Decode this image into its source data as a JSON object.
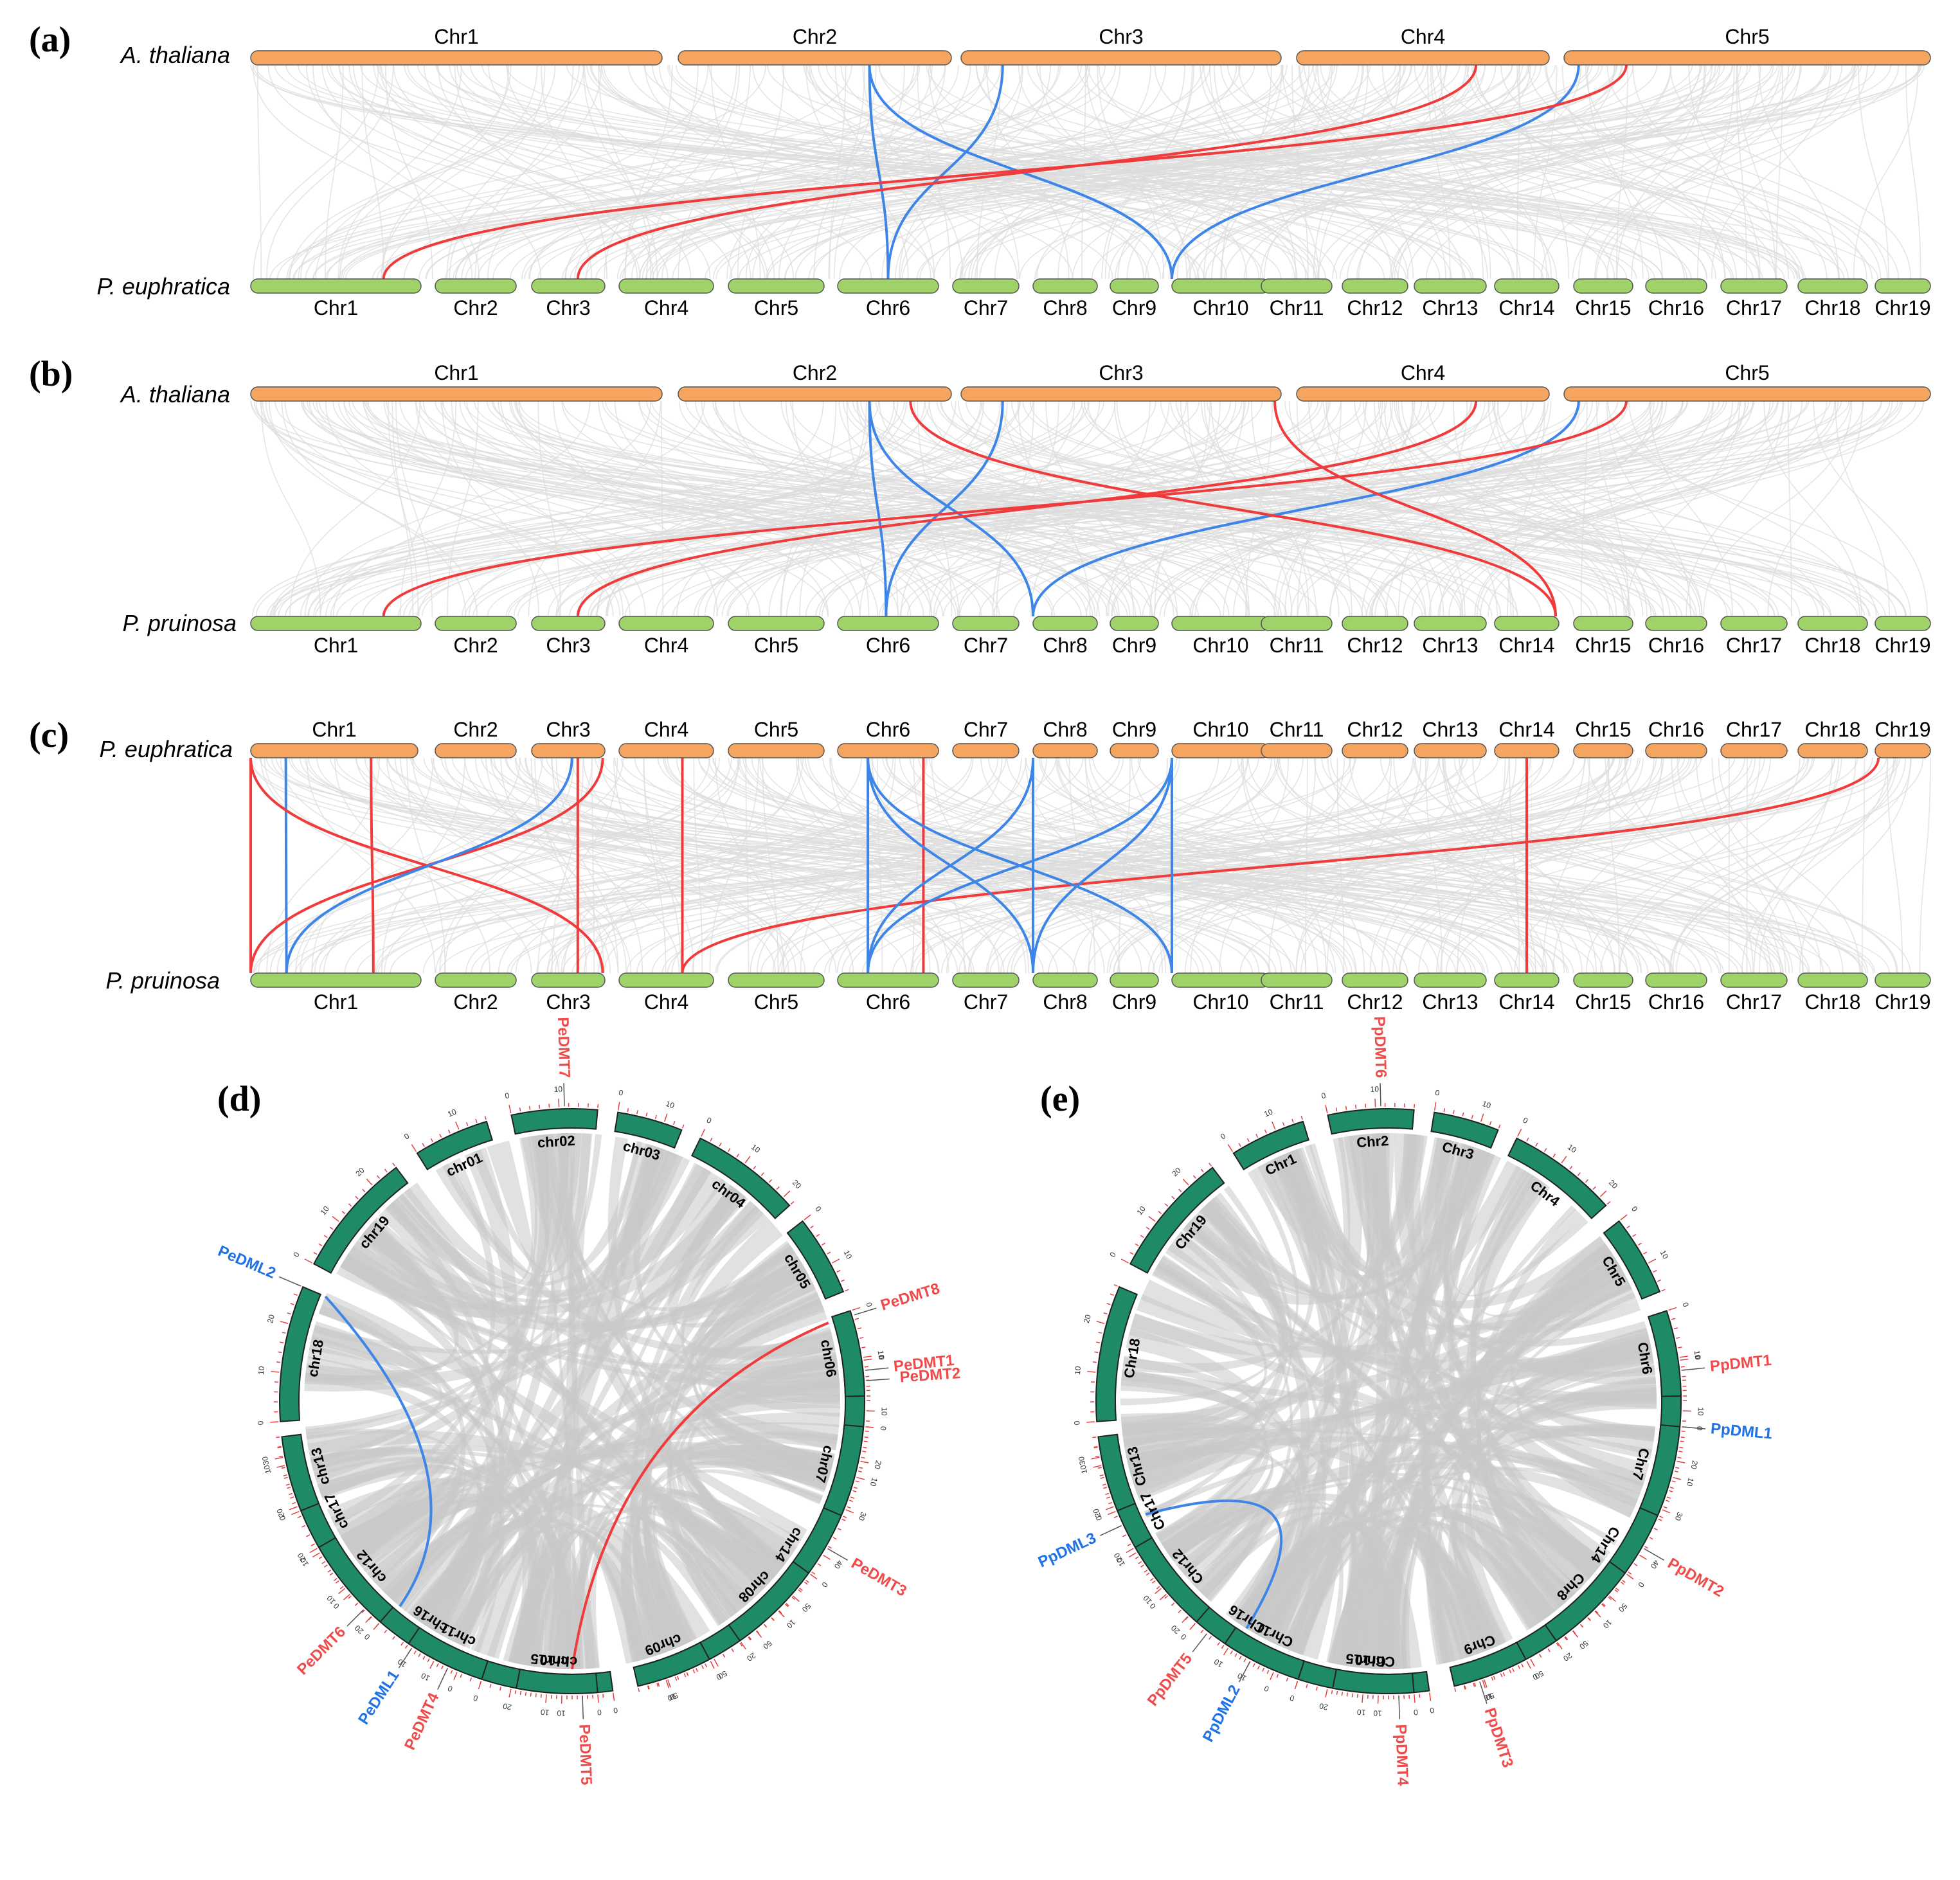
{
  "colors": {
    "top_bar": "#f6a561",
    "bottom_bar": "#9fd36a",
    "bar_stroke": "#555555",
    "red_link": "#ef3b3b",
    "blue_link": "#3d86e8",
    "gray_link": "#dcdcdc",
    "circos_chr": "#1e8a66",
    "tick_red": "#e24040"
  },
  "panels": {
    "a": {
      "label": "(a)",
      "top_species": "A. thaliana",
      "bottom_species": "P. euphratica",
      "top_chromosomes": [
        "Chr1",
        "Chr2",
        "Chr3",
        "Chr4",
        "Chr5"
      ],
      "bottom_chromosomes": [
        "Chr1",
        "Chr2",
        "Chr3",
        "Chr4",
        "Chr5",
        "Chr6",
        "Chr7",
        "Chr8",
        "Chr9",
        "Chr10",
        "Chr11",
        "Chr12",
        "Chr13",
        "Chr14",
        "Chr15",
        "Chr16",
        "Chr17",
        "Chr18",
        "Chr19"
      ],
      "links": [
        {
          "top_chr": "Chr2",
          "top_frac": 0.7,
          "bottom_chr": "Chr6",
          "bottom_frac": 0.5,
          "color": "blue"
        },
        {
          "top_chr": "Chr2",
          "top_frac": 0.7,
          "bottom_chr": "Chr10",
          "bottom_frac": 0.0,
          "color": "blue"
        },
        {
          "top_chr": "Chr3",
          "top_frac": 0.13,
          "bottom_chr": "Chr6",
          "bottom_frac": 0.5,
          "color": "blue"
        },
        {
          "top_chr": "Chr5",
          "top_frac": 0.04,
          "bottom_chr": "Chr10",
          "bottom_frac": 0.0,
          "color": "blue"
        },
        {
          "top_chr": "Chr4",
          "top_frac": 0.71,
          "bottom_chr": "Chr3",
          "bottom_frac": 0.63,
          "color": "red"
        },
        {
          "top_chr": "Chr5",
          "top_frac": 0.17,
          "bottom_chr": "Chr1",
          "bottom_frac": 0.78,
          "color": "red"
        }
      ]
    },
    "b": {
      "label": "(b)",
      "top_species": "A. thaliana",
      "bottom_species": "P.  pruinosa",
      "top_chromosomes": [
        "Chr1",
        "Chr2",
        "Chr3",
        "Chr4",
        "Chr5"
      ],
      "bottom_chromosomes": [
        "Chr1",
        "Chr2",
        "Chr3",
        "Chr4",
        "Chr5",
        "Chr6",
        "Chr7",
        "Chr8",
        "Chr9",
        "Chr10",
        "Chr11",
        "Chr12",
        "Chr13",
        "Chr14",
        "Chr15",
        "Chr16",
        "Chr17",
        "Chr18",
        "Chr19"
      ],
      "links": [
        {
          "top_chr": "Chr2",
          "top_frac": 0.7,
          "bottom_chr": "Chr6",
          "bottom_frac": 0.48,
          "color": "blue"
        },
        {
          "top_chr": "Chr2",
          "top_frac": 0.7,
          "bottom_chr": "Chr8",
          "bottom_frac": 0.0,
          "color": "blue"
        },
        {
          "top_chr": "Chr3",
          "top_frac": 0.13,
          "bottom_chr": "Chr6",
          "bottom_frac": 0.48,
          "color": "blue"
        },
        {
          "top_chr": "Chr5",
          "top_frac": 0.04,
          "bottom_chr": "Chr8",
          "bottom_frac": 0.0,
          "color": "blue"
        },
        {
          "top_chr": "Chr2",
          "top_frac": 0.85,
          "bottom_chr": "Chr14",
          "bottom_frac": 0.95,
          "color": "red"
        },
        {
          "top_chr": "Chr3",
          "top_frac": 0.98,
          "bottom_chr": "Chr14",
          "bottom_frac": 0.95,
          "color": "red"
        },
        {
          "top_chr": "Chr4",
          "top_frac": 0.71,
          "bottom_chr": "Chr3",
          "bottom_frac": 0.63,
          "color": "red"
        },
        {
          "top_chr": "Chr5",
          "top_frac": 0.17,
          "bottom_chr": "Chr1",
          "bottom_frac": 0.78,
          "color": "red"
        }
      ]
    },
    "c": {
      "label": "(c)",
      "top_species": "P. euphratica",
      "bottom_species": "P.  pruinosa",
      "top_chromosomes": [
        "Chr1",
        "Chr2",
        "Chr3",
        "Chr4",
        "Chr5",
        "Chr6",
        "Chr7",
        "Chr8",
        "Chr9",
        "Chr10",
        "Chr11",
        "Chr12",
        "Chr13",
        "Chr14",
        "Chr15",
        "Chr16",
        "Chr17",
        "Chr18",
        "Chr19"
      ],
      "bottom_chromosomes": [
        "Chr1",
        "Chr2",
        "Chr3",
        "Chr4",
        "Chr5",
        "Chr6",
        "Chr7",
        "Chr8",
        "Chr9",
        "Chr10",
        "Chr11",
        "Chr12",
        "Chr13",
        "Chr14",
        "Chr15",
        "Chr16",
        "Chr17",
        "Chr18",
        "Chr19"
      ],
      "links": [
        {
          "top_chr": "Chr1",
          "top_frac": 0.0,
          "bottom_chr": "Chr1",
          "bottom_frac": 0.0,
          "color": "red"
        },
        {
          "top_chr": "Chr1",
          "top_frac": 0.21,
          "bottom_chr": "Chr1",
          "bottom_frac": 0.21,
          "color": "blue"
        },
        {
          "top_chr": "Chr1",
          "top_frac": 0.72,
          "bottom_chr": "Chr1",
          "bottom_frac": 0.72,
          "color": "red"
        },
        {
          "top_chr": "Chr1",
          "top_frac": 0.0,
          "bottom_chr": "Chr3",
          "bottom_frac": 0.97,
          "color": "red"
        },
        {
          "top_chr": "Chr3",
          "top_frac": 0.97,
          "bottom_chr": "Chr1",
          "bottom_frac": 0.0,
          "color": "red"
        },
        {
          "top_chr": "Chr3",
          "top_frac": 0.55,
          "bottom_chr": "Chr1",
          "bottom_frac": 0.21,
          "color": "blue"
        },
        {
          "top_chr": "Chr3",
          "top_frac": 0.63,
          "bottom_chr": "Chr3",
          "bottom_frac": 0.63,
          "color": "red"
        },
        {
          "top_chr": "Chr4",
          "top_frac": 0.67,
          "bottom_chr": "Chr4",
          "bottom_frac": 0.67,
          "color": "red"
        },
        {
          "top_chr": "Chr6",
          "top_frac": 0.85,
          "bottom_chr": "Chr6",
          "bottom_frac": 0.85,
          "color": "red"
        },
        {
          "top_chr": "Chr19",
          "top_frac": 0.06,
          "bottom_chr": "Chr4",
          "bottom_frac": 0.67,
          "color": "red"
        },
        {
          "top_chr": "Chr14",
          "top_frac": 0.5,
          "bottom_chr": "Chr14",
          "bottom_frac": 0.5,
          "color": "red"
        },
        {
          "top_chr": "Chr6",
          "top_frac": 0.3,
          "bottom_chr": "Chr6",
          "bottom_frac": 0.3,
          "color": "blue"
        },
        {
          "top_chr": "Chr6",
          "top_frac": 0.3,
          "bottom_chr": "Chr8",
          "bottom_frac": 0.0,
          "color": "blue"
        },
        {
          "top_chr": "Chr6",
          "top_frac": 0.3,
          "bottom_chr": "Chr10",
          "bottom_frac": 0.0,
          "color": "blue"
        },
        {
          "top_chr": "Chr8",
          "top_frac": 0.0,
          "bottom_chr": "Chr8",
          "bottom_frac": 0.0,
          "color": "blue"
        },
        {
          "top_chr": "Chr8",
          "top_frac": 0.0,
          "bottom_chr": "Chr6",
          "bottom_frac": 0.3,
          "color": "blue"
        },
        {
          "top_chr": "Chr10",
          "top_frac": 0.0,
          "bottom_chr": "Chr6",
          "bottom_frac": 0.3,
          "color": "blue"
        },
        {
          "top_chr": "Chr10",
          "top_frac": 0.0,
          "bottom_chr": "Chr8",
          "bottom_frac": 0.0,
          "color": "blue"
        },
        {
          "top_chr": "Chr10",
          "top_frac": 0.0,
          "bottom_chr": "Chr10",
          "bottom_frac": 0.0,
          "color": "blue"
        }
      ]
    },
    "d": {
      "label": "(d)",
      "chromosomes": [
        "chr01",
        "chr02",
        "chr03",
        "chr04",
        "chr05",
        "chr06",
        "chr07",
        "chr08",
        "chr09",
        "chr10",
        "chr11",
        "chr12",
        "chr13",
        "chr14",
        "chr15",
        "chr16",
        "chr17",
        "chr18",
        "chr19"
      ],
      "tick_labels": [
        "0",
        "10",
        "20",
        "30",
        "40",
        "50"
      ],
      "genes": [
        {
          "name": "PeDMT7",
          "color": "red"
        },
        {
          "name": "PeDMT8",
          "color": "red"
        },
        {
          "name": "PeDMT1",
          "color": "red"
        },
        {
          "name": "PeDMT2",
          "color": "red"
        },
        {
          "name": "PeDMT3",
          "color": "red"
        },
        {
          "name": "PeDMT4",
          "color": "red"
        },
        {
          "name": "PeDMT5",
          "color": "red"
        },
        {
          "name": "PeDML1",
          "color": "blue"
        },
        {
          "name": "PeDMT6",
          "color": "red"
        },
        {
          "name": "PeDML2",
          "color": "blue"
        }
      ]
    },
    "e": {
      "label": "(e)",
      "chromosomes": [
        "Chr1",
        "Chr2",
        "Chr3",
        "Chr4",
        "Chr5",
        "Chr6",
        "Chr7",
        "Chr8",
        "Chr9",
        "Chr10",
        "Chr11",
        "Chr12",
        "Chr13",
        "Chr14",
        "Chr15",
        "Chr16",
        "Chr17",
        "Chr18",
        "Chr19"
      ],
      "tick_labels": [
        "0",
        "10",
        "20",
        "30",
        "40",
        "50"
      ],
      "genes": [
        {
          "name": "PpDMT6",
          "color": "red"
        },
        {
          "name": "PpDMT1",
          "color": "red"
        },
        {
          "name": "PpDML1",
          "color": "blue"
        },
        {
          "name": "PpDMT2",
          "color": "red"
        },
        {
          "name": "PpDMT3",
          "color": "red"
        },
        {
          "name": "PpDMT4",
          "color": "red"
        },
        {
          "name": "PpDML2",
          "color": "blue"
        },
        {
          "name": "PpDMT5",
          "color": "red"
        },
        {
          "name": "PpDML3",
          "color": "blue"
        }
      ]
    }
  }
}
